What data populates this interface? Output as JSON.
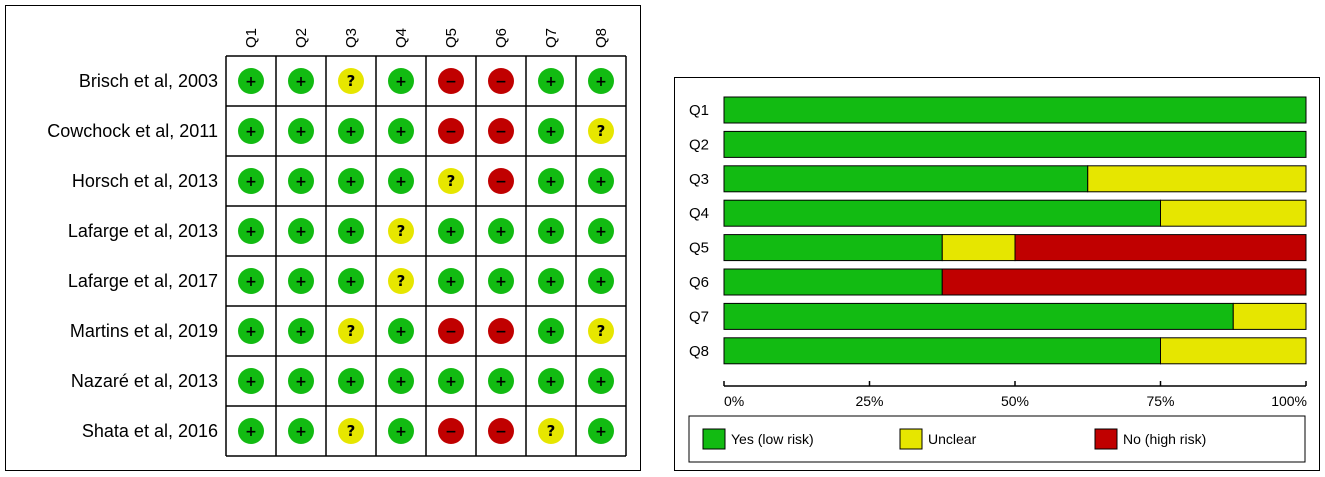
{
  "colors": {
    "yes": "#12bb12",
    "unclear": "#e6e600",
    "no": "#c00000"
  },
  "chart_data": [
    {
      "type": "table",
      "questions": [
        "Q1",
        "Q2",
        "Q3",
        "Q4",
        "Q5",
        "Q6",
        "Q7",
        "Q8"
      ],
      "studies": [
        {
          "name": "Brisch et al, 2003",
          "ratings": [
            "yes",
            "yes",
            "unclear",
            "yes",
            "no",
            "no",
            "yes",
            "yes"
          ]
        },
        {
          "name": "Cowchock et al, 2011",
          "ratings": [
            "yes",
            "yes",
            "yes",
            "yes",
            "no",
            "no",
            "yes",
            "unclear"
          ]
        },
        {
          "name": "Horsch et al, 2013",
          "ratings": [
            "yes",
            "yes",
            "yes",
            "yes",
            "unclear",
            "no",
            "yes",
            "yes"
          ]
        },
        {
          "name": "Lafarge et al, 2013",
          "ratings": [
            "yes",
            "yes",
            "yes",
            "unclear",
            "yes",
            "yes",
            "yes",
            "yes"
          ]
        },
        {
          "name": "Lafarge et al, 2017",
          "ratings": [
            "yes",
            "yes",
            "yes",
            "unclear",
            "yes",
            "yes",
            "yes",
            "yes"
          ]
        },
        {
          "name": "Martins et al, 2019",
          "ratings": [
            "yes",
            "yes",
            "unclear",
            "yes",
            "no",
            "no",
            "yes",
            "unclear"
          ]
        },
        {
          "name": "Nazaré et al, 2013",
          "ratings": [
            "yes",
            "yes",
            "yes",
            "yes",
            "yes",
            "yes",
            "yes",
            "yes"
          ]
        },
        {
          "name": "Shata et al, 2016",
          "ratings": [
            "yes",
            "yes",
            "unclear",
            "yes",
            "no",
            "no",
            "unclear",
            "yes"
          ]
        }
      ],
      "symbols": {
        "yes": "+",
        "unclear": "?",
        "no": "−"
      }
    },
    {
      "type": "bar",
      "orientation": "horizontal",
      "stacked": true,
      "categories": [
        "Q1",
        "Q2",
        "Q3",
        "Q4",
        "Q5",
        "Q6",
        "Q7",
        "Q8"
      ],
      "series": [
        {
          "name": "Yes (low risk)",
          "key": "yes",
          "values": [
            100,
            100,
            62.5,
            75,
            37.5,
            37.5,
            87.5,
            75
          ]
        },
        {
          "name": "Unclear",
          "key": "unclear",
          "values": [
            0,
            0,
            37.5,
            25,
            12.5,
            0,
            12.5,
            25
          ]
        },
        {
          "name": "No (high risk)",
          "key": "no",
          "values": [
            0,
            0,
            0,
            0,
            50,
            62.5,
            0,
            0
          ]
        }
      ],
      "xlim": [
        0,
        100
      ],
      "xticks": [
        "0%",
        "25%",
        "50%",
        "75%",
        "100%"
      ],
      "legend_position": "bottom"
    }
  ]
}
